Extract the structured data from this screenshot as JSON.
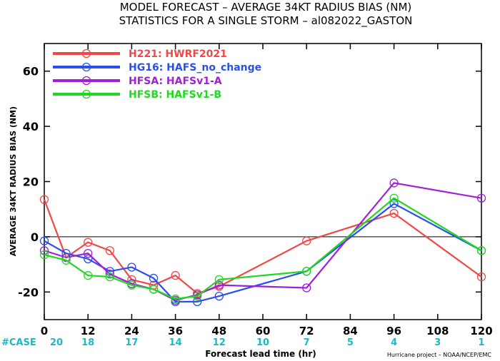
{
  "chart_data": {
    "type": "line",
    "title": "MODEL FORECAST – AVERAGE 34KT RADIUS BIAS (NM)",
    "subtitle": "STATISTICS FOR A SINGLE STORM – al082022_GASTON",
    "xlabel": "Forecast lead time (hr)",
    "ylabel": "AVERAGE 34KT RADIUS BIAS (NM)",
    "xlim": [
      0,
      120
    ],
    "ylim": [
      -30,
      70
    ],
    "xticks": [
      0,
      12,
      24,
      36,
      48,
      60,
      72,
      84,
      96,
      108,
      120
    ],
    "yticks": [
      -20,
      0,
      20,
      40,
      60
    ],
    "zero_line": 0,
    "grid": false,
    "legend_position": "top-left",
    "series": [
      {
        "name": "H221: HWRF2021",
        "color": "#f04848",
        "points": [
          [
            0,
            13.5
          ],
          [
            6,
            -7.5
          ],
          [
            12,
            -2
          ],
          [
            18,
            -5
          ],
          [
            24,
            -15.5
          ],
          [
            30,
            -17.5
          ],
          [
            36,
            -14
          ],
          [
            42,
            -20.5
          ],
          [
            48,
            -18
          ],
          [
            72,
            -1.5
          ],
          [
            96,
            8.5
          ],
          [
            120,
            -14.5
          ]
        ]
      },
      {
        "name": "HG16: HAFS_no_change",
        "color": "#2850f0",
        "points": [
          [
            0,
            -1.5
          ],
          [
            6,
            -6
          ],
          [
            12,
            -8
          ],
          [
            18,
            -12.5
          ],
          [
            24,
            -11
          ],
          [
            30,
            -15
          ],
          [
            36,
            -23.5
          ],
          [
            42,
            -23.5
          ],
          [
            48,
            -21.5
          ],
          [
            72,
            -12.5
          ],
          [
            96,
            12
          ],
          [
            120,
            -5
          ]
        ]
      },
      {
        "name": "HFSA: HAFSv1-A",
        "color": "#a020d8",
        "points": [
          [
            0,
            -5
          ],
          [
            6,
            -7.5
          ],
          [
            12,
            -6
          ],
          [
            18,
            -13.5
          ],
          [
            24,
            -17
          ],
          [
            30,
            -19
          ],
          [
            36,
            -23
          ],
          [
            42,
            -21
          ],
          [
            48,
            -17.5
          ],
          [
            72,
            -18.5
          ],
          [
            96,
            19.5
          ],
          [
            120,
            14
          ]
        ]
      },
      {
        "name": "HFSB: HAFSv1-B",
        "color": "#20d820",
        "points": [
          [
            0,
            -6.5
          ],
          [
            6,
            -8.5
          ],
          [
            12,
            -14
          ],
          [
            18,
            -14.5
          ],
          [
            24,
            -17.5
          ],
          [
            30,
            -19
          ],
          [
            36,
            -22.5
          ],
          [
            42,
            -21.5
          ],
          [
            48,
            -15.5
          ],
          [
            72,
            -12.5
          ],
          [
            96,
            14
          ],
          [
            120,
            -5
          ]
        ]
      }
    ],
    "cases": {
      "label": "#CASE",
      "x": [
        0,
        12,
        24,
        36,
        48,
        60,
        72,
        84,
        96,
        108,
        120
      ],
      "values": [
        20,
        18,
        17,
        14,
        12,
        10,
        7,
        5,
        4,
        3,
        1
      ],
      "color": "#1ab8c8"
    },
    "credit": "Hurricane project – NOAA/NCEP/EMC"
  }
}
